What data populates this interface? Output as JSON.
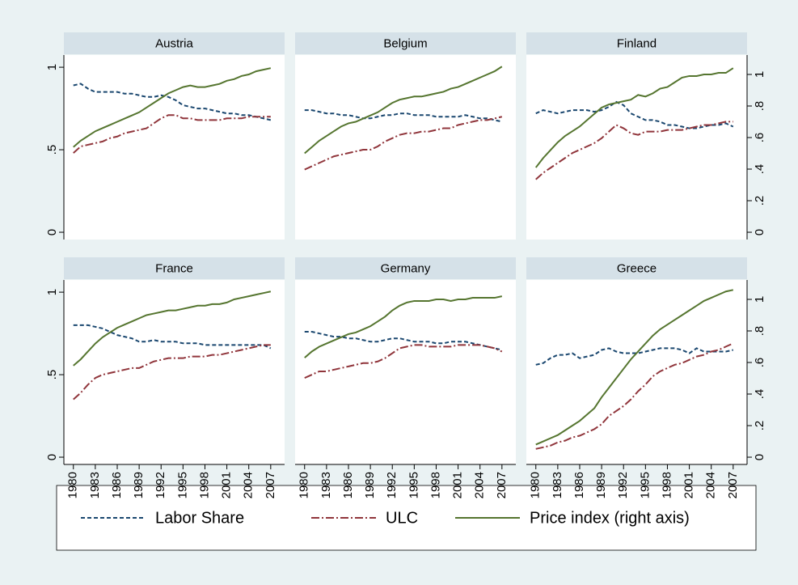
{
  "chart_data": {
    "type": "line",
    "x": [
      1980,
      1981,
      1982,
      1983,
      1984,
      1985,
      1986,
      1987,
      1988,
      1989,
      1990,
      1991,
      1992,
      1993,
      1994,
      1995,
      1996,
      1997,
      1998,
      1999,
      2000,
      2001,
      2002,
      2003,
      2004,
      2005,
      2006,
      2007
    ],
    "xlim": [
      1978.7,
      2008.9
    ],
    "xticks": [
      1980,
      1983,
      1986,
      1989,
      1992,
      1995,
      1998,
      2001,
      2004,
      2007
    ],
    "ylim": [
      -0.044,
      1.074
    ],
    "yticks": [
      0,
      {
        "value": 0.5,
        "label": ".5"
      },
      1
    ],
    "y2lim": [
      -0.046,
      1.123
    ],
    "y2ticks": [
      0,
      {
        "value": 0.2,
        "label": ".2"
      },
      {
        "value": 0.4,
        "label": ".4"
      },
      {
        "value": 0.6,
        "label": ".6"
      },
      {
        "value": 0.8,
        "label": ".8"
      },
      1
    ],
    "series": [
      {
        "name": "Labor Share",
        "color": "#1a476f",
        "dash": "5,3"
      },
      {
        "name": "ULC",
        "color": "#90353b",
        "dash": "10,3,2,3"
      },
      {
        "name": "Price index (right axis)",
        "color": "#55752f",
        "axis": "y2"
      }
    ],
    "panels": [
      {
        "title": "Austria",
        "values": [
          [
            0.89,
            0.9,
            0.87,
            0.85,
            0.85,
            0.85,
            0.85,
            0.84,
            0.84,
            0.83,
            0.82,
            0.82,
            0.83,
            0.82,
            0.8,
            0.77,
            0.76,
            0.75,
            0.75,
            0.74,
            0.73,
            0.72,
            0.72,
            0.71,
            0.71,
            0.7,
            0.69,
            0.68
          ],
          [
            0.48,
            0.52,
            0.53,
            0.54,
            0.55,
            0.57,
            0.58,
            0.6,
            0.61,
            0.62,
            0.63,
            0.66,
            0.69,
            0.71,
            0.71,
            0.69,
            0.69,
            0.68,
            0.68,
            0.68,
            0.68,
            0.69,
            0.69,
            0.69,
            0.7,
            0.7,
            0.7,
            0.7
          ],
          [
            0.54,
            0.58,
            0.61,
            0.64,
            0.66,
            0.68,
            0.7,
            0.72,
            0.74,
            0.76,
            0.79,
            0.82,
            0.85,
            0.88,
            0.9,
            0.92,
            0.93,
            0.92,
            0.92,
            0.93,
            0.94,
            0.96,
            0.97,
            0.99,
            1.0,
            1.02,
            1.03,
            1.04
          ]
        ]
      },
      {
        "title": "Belgium",
        "values": [
          [
            0.74,
            0.74,
            0.73,
            0.72,
            0.72,
            0.71,
            0.71,
            0.7,
            0.69,
            0.69,
            0.7,
            0.71,
            0.71,
            0.72,
            0.72,
            0.71,
            0.71,
            0.71,
            0.7,
            0.7,
            0.7,
            0.7,
            0.71,
            0.7,
            0.69,
            0.69,
            0.68,
            0.67
          ],
          [
            0.38,
            0.4,
            0.42,
            0.44,
            0.46,
            0.47,
            0.48,
            0.49,
            0.5,
            0.5,
            0.52,
            0.55,
            0.57,
            0.59,
            0.6,
            0.6,
            0.61,
            0.61,
            0.62,
            0.63,
            0.63,
            0.65,
            0.66,
            0.67,
            0.68,
            0.68,
            0.69,
            0.7
          ],
          [
            0.5,
            0.54,
            0.58,
            0.61,
            0.64,
            0.67,
            0.69,
            0.7,
            0.72,
            0.74,
            0.76,
            0.79,
            0.82,
            0.84,
            0.85,
            0.86,
            0.86,
            0.87,
            0.88,
            0.89,
            0.91,
            0.92,
            0.94,
            0.96,
            0.98,
            1.0,
            1.02,
            1.05
          ]
        ]
      },
      {
        "title": "Finland",
        "values": [
          [
            0.72,
            0.74,
            0.73,
            0.72,
            0.73,
            0.74,
            0.74,
            0.74,
            0.73,
            0.74,
            0.76,
            0.79,
            0.77,
            0.72,
            0.7,
            0.68,
            0.68,
            0.67,
            0.65,
            0.65,
            0.64,
            0.63,
            0.63,
            0.64,
            0.65,
            0.65,
            0.66,
            0.64
          ],
          [
            0.32,
            0.36,
            0.39,
            0.42,
            0.45,
            0.48,
            0.5,
            0.52,
            0.54,
            0.57,
            0.61,
            0.65,
            0.63,
            0.6,
            0.59,
            0.61,
            0.61,
            0.61,
            0.62,
            0.62,
            0.62,
            0.63,
            0.64,
            0.65,
            0.65,
            0.66,
            0.67,
            0.67
          ],
          [
            0.41,
            0.47,
            0.52,
            0.57,
            0.61,
            0.64,
            0.67,
            0.71,
            0.75,
            0.79,
            0.81,
            0.82,
            0.83,
            0.84,
            0.87,
            0.86,
            0.88,
            0.91,
            0.92,
            0.95,
            0.98,
            0.99,
            0.99,
            1.0,
            1.0,
            1.01,
            1.01,
            1.04
          ]
        ]
      },
      {
        "title": "France",
        "values": [
          [
            0.8,
            0.8,
            0.8,
            0.79,
            0.78,
            0.76,
            0.74,
            0.73,
            0.72,
            0.7,
            0.7,
            0.71,
            0.7,
            0.7,
            0.7,
            0.69,
            0.69,
            0.69,
            0.68,
            0.68,
            0.68,
            0.68,
            0.68,
            0.68,
            0.68,
            0.68,
            0.68,
            0.66
          ],
          [
            0.35,
            0.39,
            0.44,
            0.48,
            0.5,
            0.51,
            0.52,
            0.53,
            0.54,
            0.54,
            0.56,
            0.58,
            0.59,
            0.6,
            0.6,
            0.6,
            0.61,
            0.61,
            0.61,
            0.62,
            0.62,
            0.63,
            0.64,
            0.65,
            0.66,
            0.67,
            0.68,
            0.68
          ],
          [
            0.58,
            0.62,
            0.67,
            0.72,
            0.76,
            0.79,
            0.82,
            0.84,
            0.86,
            0.88,
            0.9,
            0.91,
            0.92,
            0.93,
            0.93,
            0.94,
            0.95,
            0.96,
            0.96,
            0.97,
            0.97,
            0.98,
            1.0,
            1.01,
            1.02,
            1.03,
            1.04,
            1.05
          ]
        ]
      },
      {
        "title": "Germany",
        "values": [
          [
            0.76,
            0.76,
            0.75,
            0.74,
            0.73,
            0.73,
            0.72,
            0.72,
            0.71,
            0.7,
            0.7,
            0.71,
            0.72,
            0.72,
            0.71,
            0.7,
            0.7,
            0.7,
            0.69,
            0.69,
            0.7,
            0.7,
            0.7,
            0.69,
            0.68,
            0.67,
            0.66,
            0.65
          ],
          [
            0.48,
            0.5,
            0.52,
            0.52,
            0.53,
            0.54,
            0.55,
            0.56,
            0.57,
            0.57,
            0.58,
            0.6,
            0.63,
            0.66,
            0.67,
            0.68,
            0.68,
            0.67,
            0.67,
            0.67,
            0.67,
            0.68,
            0.68,
            0.68,
            0.68,
            0.67,
            0.66,
            0.64
          ],
          [
            0.63,
            0.67,
            0.7,
            0.72,
            0.74,
            0.76,
            0.78,
            0.79,
            0.81,
            0.83,
            0.86,
            0.89,
            0.93,
            0.96,
            0.98,
            0.99,
            0.99,
            0.99,
            1.0,
            1.0,
            0.99,
            1.0,
            1.0,
            1.01,
            1.01,
            1.01,
            1.01,
            1.02
          ]
        ]
      },
      {
        "title": "Greece",
        "values": [
          [
            0.56,
            0.57,
            0.6,
            0.62,
            0.62,
            0.63,
            0.6,
            0.61,
            0.62,
            0.65,
            0.66,
            0.64,
            0.63,
            0.63,
            0.63,
            0.64,
            0.65,
            0.66,
            0.66,
            0.66,
            0.65,
            0.63,
            0.66,
            0.64,
            0.64,
            0.64,
            0.64,
            0.65
          ],
          [
            0.05,
            0.06,
            0.07,
            0.09,
            0.1,
            0.12,
            0.13,
            0.15,
            0.17,
            0.2,
            0.25,
            0.28,
            0.31,
            0.35,
            0.4,
            0.44,
            0.49,
            0.52,
            0.54,
            0.56,
            0.57,
            0.59,
            0.61,
            0.62,
            0.64,
            0.65,
            0.67,
            0.69
          ],
          [
            0.08,
            0.1,
            0.12,
            0.14,
            0.17,
            0.2,
            0.23,
            0.27,
            0.31,
            0.38,
            0.44,
            0.5,
            0.56,
            0.62,
            0.67,
            0.72,
            0.77,
            0.81,
            0.84,
            0.87,
            0.9,
            0.93,
            0.96,
            0.99,
            1.01,
            1.03,
            1.05,
            1.06
          ]
        ]
      }
    ]
  }
}
